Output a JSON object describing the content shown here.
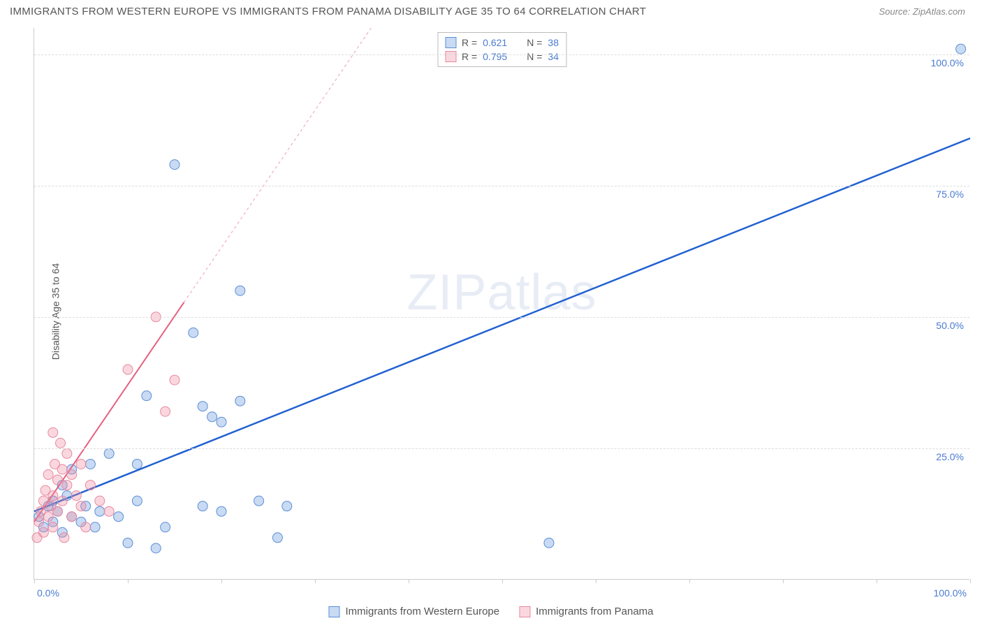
{
  "header": {
    "title": "IMMIGRANTS FROM WESTERN EUROPE VS IMMIGRANTS FROM PANAMA DISABILITY AGE 35 TO 64 CORRELATION CHART",
    "source": "Source: ZipAtlas.com"
  },
  "chart": {
    "type": "scatter",
    "ylabel": "Disability Age 35 to 64",
    "watermark": "ZIPatlas",
    "background_color": "#ffffff",
    "grid_color": "#dddddd",
    "axis_color": "#cccccc",
    "xlim": [
      0,
      100
    ],
    "ylim": [
      0,
      105
    ],
    "xtick_positions": [
      0,
      10,
      20,
      30,
      40,
      50,
      60,
      70,
      80,
      90,
      100
    ],
    "xtick_labels": {
      "left": "0.0%",
      "right": "100.0%"
    },
    "ytick_positions": [
      25,
      50,
      75,
      100
    ],
    "ytick_labels": [
      "25.0%",
      "50.0%",
      "75.0%",
      "100.0%"
    ],
    "label_color": "#4a7bd0",
    "label_fontsize": 14,
    "series": [
      {
        "name": "Immigrants from Western Europe",
        "key": "blue",
        "marker_fill": "rgba(100,150,220,0.35)",
        "marker_stroke": "#5b8fd6",
        "marker_radius": 7,
        "trend_color": "#2060d0",
        "trend_width": 2.5,
        "trend_dash_after_x": 100,
        "trend": {
          "x1": 0,
          "y1": 13,
          "x2": 100,
          "y2": 84
        },
        "r": "0.621",
        "n": "38",
        "points": [
          [
            0.5,
            12
          ],
          [
            1,
            10
          ],
          [
            1.5,
            14
          ],
          [
            2,
            11
          ],
          [
            2,
            15
          ],
          [
            2.5,
            13
          ],
          [
            3,
            9
          ],
          [
            3,
            18
          ],
          [
            3.5,
            16
          ],
          [
            4,
            12
          ],
          [
            4,
            21
          ],
          [
            5,
            11
          ],
          [
            5.5,
            14
          ],
          [
            6,
            22
          ],
          [
            6.5,
            10
          ],
          [
            7,
            13
          ],
          [
            8,
            24
          ],
          [
            9,
            12
          ],
          [
            10,
            7
          ],
          [
            11,
            22
          ],
          [
            11,
            15
          ],
          [
            12,
            35
          ],
          [
            13,
            6
          ],
          [
            14,
            10
          ],
          [
            15,
            79
          ],
          [
            17,
            47
          ],
          [
            18,
            33
          ],
          [
            18,
            14
          ],
          [
            19,
            31
          ],
          [
            20,
            30
          ],
          [
            20,
            13
          ],
          [
            22,
            34
          ],
          [
            22,
            55
          ],
          [
            24,
            15
          ],
          [
            26,
            8
          ],
          [
            27,
            14
          ],
          [
            55,
            7
          ],
          [
            99,
            101
          ]
        ]
      },
      {
        "name": "Immigrants from Panama",
        "key": "pink",
        "marker_fill": "rgba(240,140,160,0.35)",
        "marker_stroke": "#e68aa0",
        "marker_radius": 7,
        "trend_color": "#e6607f",
        "trend_width": 2,
        "trend_dash_after_x": 16,
        "trend": {
          "x1": 0,
          "y1": 11,
          "x2": 36,
          "y2": 105
        },
        "r": "0.795",
        "n": "34",
        "points": [
          [
            0.3,
            8
          ],
          [
            0.5,
            11
          ],
          [
            0.7,
            13
          ],
          [
            1,
            9
          ],
          [
            1,
            15
          ],
          [
            1.2,
            17
          ],
          [
            1.5,
            12
          ],
          [
            1.5,
            20
          ],
          [
            1.8,
            14
          ],
          [
            2,
            10
          ],
          [
            2,
            16
          ],
          [
            2,
            28
          ],
          [
            2.2,
            22
          ],
          [
            2.5,
            13
          ],
          [
            2.5,
            19
          ],
          [
            2.8,
            26
          ],
          [
            3,
            15
          ],
          [
            3,
            21
          ],
          [
            3.2,
            8
          ],
          [
            3.5,
            18
          ],
          [
            3.5,
            24
          ],
          [
            4,
            12
          ],
          [
            4,
            20
          ],
          [
            4.5,
            16
          ],
          [
            5,
            14
          ],
          [
            5,
            22
          ],
          [
            5.5,
            10
          ],
          [
            6,
            18
          ],
          [
            7,
            15
          ],
          [
            8,
            13
          ],
          [
            10,
            40
          ],
          [
            13,
            50
          ],
          [
            14,
            32
          ],
          [
            15,
            38
          ]
        ]
      }
    ],
    "legend_top": {
      "r_label": "R  =",
      "n_label": "N  ="
    },
    "legend_bottom": [
      {
        "swatch": "blue",
        "label": "Immigrants from Western Europe"
      },
      {
        "swatch": "pink",
        "label": "Immigrants from Panama"
      }
    ]
  }
}
